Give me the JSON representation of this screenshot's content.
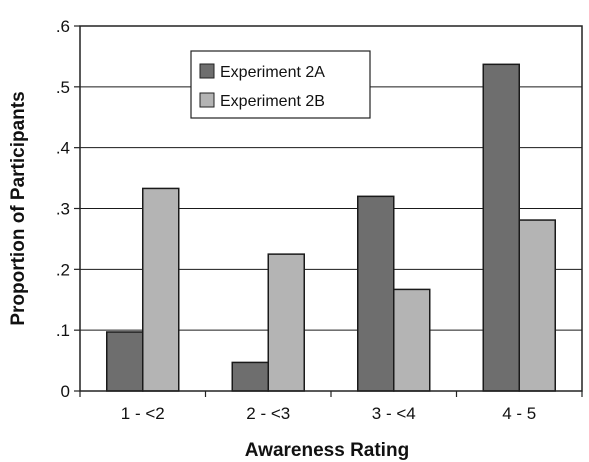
{
  "chart_data": {
    "type": "bar",
    "title": "",
    "xlabel": "Awareness Rating",
    "ylabel": "Proportion of Participants",
    "categories": [
      "1 - <2",
      "2 - <3",
      "3 - <4",
      "4 - 5"
    ],
    "series": [
      {
        "name": "Experiment 2A",
        "values": [
          0.097,
          0.047,
          0.32,
          0.537
        ],
        "color": "#6e6e6e"
      },
      {
        "name": "Experiment 2B",
        "values": [
          0.333,
          0.225,
          0.167,
          0.281
        ],
        "color": "#b4b4b4"
      }
    ],
    "ylim": [
      0,
      0.6
    ],
    "yticks": [
      {
        "value": 0,
        "label": "0"
      },
      {
        "value": 0.1,
        "label": ".1"
      },
      {
        "value": 0.2,
        "label": ".2"
      },
      {
        "value": 0.3,
        "label": ".3"
      },
      {
        "value": 0.4,
        "label": ".4"
      },
      {
        "value": 0.5,
        "label": ".5"
      },
      {
        "value": 0.6,
        "label": ".6"
      }
    ],
    "grid": true,
    "legend_position": "top-center"
  }
}
